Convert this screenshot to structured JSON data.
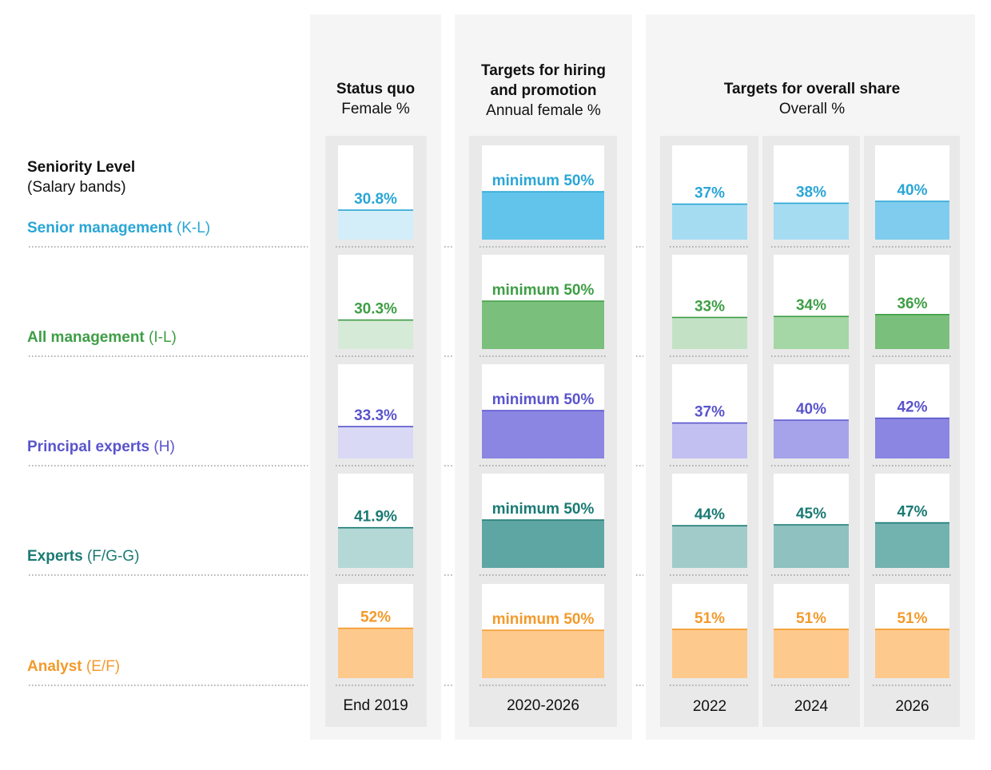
{
  "chart_data": {
    "type": "bar",
    "ylim": [
      0,
      100
    ],
    "header": {
      "title": "Seniority Level",
      "subtitle": "(Salary bands)"
    },
    "panels": [
      {
        "id": "status_quo",
        "title": "Status quo",
        "subtitle": "Female %"
      },
      {
        "id": "hiring",
        "title": "Targets for hiring and promotion",
        "title_lines": [
          "Targets for hiring",
          "and promotion"
        ],
        "subtitle": "Annual female %"
      },
      {
        "id": "overall",
        "title": "Targets for overall share",
        "subtitle": "Overall %"
      }
    ],
    "columns": [
      {
        "panel": "status_quo",
        "label": "End 2019",
        "key": "end_2019"
      },
      {
        "panel": "hiring",
        "label": "2020-2026",
        "key": "hiring_2020_2026"
      },
      {
        "panel": "overall",
        "label": "2022",
        "key": "y2022"
      },
      {
        "panel": "overall",
        "label": "2024",
        "key": "y2024"
      },
      {
        "panel": "overall",
        "label": "2026",
        "key": "y2026"
      }
    ],
    "categories": [
      "Senior management (K-L)",
      "All management (I-L)",
      "Principal experts (H)",
      "Experts (F/G-G)",
      "Analyst (E/F)"
    ],
    "series": [
      {
        "name": "Senior management (K-L)",
        "level": "Senior management",
        "band": "(K-L)",
        "color": "#2aa6d6",
        "fills": [
          "#d3eef9",
          "#62c4ea",
          "#a5dcf2",
          "#a5dcf2",
          "#7fccee"
        ],
        "values": [
          30.8,
          50,
          37,
          38,
          40
        ],
        "labels": [
          "30.8%",
          "minimum 50%",
          "37%",
          "38%",
          "40%"
        ]
      },
      {
        "name": "All management (I-L)",
        "level": "All management",
        "band": "(I-L)",
        "color": "#3e9e45",
        "fills": [
          "#d6ead8",
          "#7abf7c",
          "#c3e2c5",
          "#a5d6a6",
          "#7abf7c"
        ],
        "values": [
          30.3,
          50,
          33,
          34,
          36
        ],
        "labels": [
          "30.3%",
          "minimum 50%",
          "33%",
          "34%",
          "36%"
        ]
      },
      {
        "name": "Principal experts (H)",
        "level": "Principal experts",
        "band": "(H)",
        "color": "#5a54cc",
        "fills": [
          "#d9d8f5",
          "#8a86e2",
          "#c2c0f0",
          "#a6a3ea",
          "#8a86e2"
        ],
        "values": [
          33.3,
          50,
          37,
          40,
          42
        ],
        "labels": [
          "33.3%",
          "minimum 50%",
          "37%",
          "40%",
          "42%"
        ]
      },
      {
        "name": "Experts (F/G-G)",
        "level": "Experts",
        "band": "(F/G-G)",
        "color": "#1a7a73",
        "fills": [
          "#b4d8d6",
          "#5ea6a3",
          "#a0cbc9",
          "#8ec1bf",
          "#72b2af"
        ],
        "values": [
          41.9,
          50,
          44,
          45,
          47
        ],
        "labels": [
          "41.9%",
          "minimum 50%",
          "44%",
          "45%",
          "47%"
        ]
      },
      {
        "name": "Analyst (E/F)",
        "level": "Analyst",
        "band": "(E/F)",
        "color": "#f39a2b",
        "fills": [
          "#fec98d",
          "#fec98d",
          "#fec98d",
          "#fec98d",
          "#fec98d"
        ],
        "values": [
          52,
          50,
          51,
          51,
          51
        ],
        "labels": [
          "52%",
          "minimum 50%",
          "51%",
          "51%",
          "51%"
        ]
      }
    ]
  }
}
